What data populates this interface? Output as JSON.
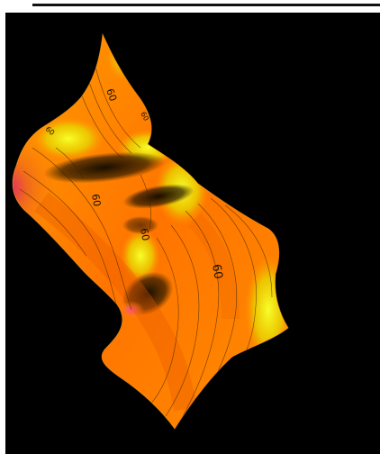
{
  "colors": {
    "background": "#000000",
    "frame": "#ffffff",
    "surface_low": "#ff8a00",
    "surface_mid": "#ff6a00",
    "surface_high": "#f4ff1a",
    "surface_peak": "#e0306a",
    "contour": "#3a2400"
  },
  "chart_data": {
    "type": "surface",
    "title": "",
    "xlabel": "",
    "ylabel": "",
    "grid": false,
    "legend": "none",
    "contour_labels": [
      {
        "text": "60"
      },
      {
        "text": "60"
      },
      {
        "text": "60"
      },
      {
        "text": "60"
      },
      {
        "text": "60"
      },
      {
        "text": "60"
      }
    ]
  }
}
